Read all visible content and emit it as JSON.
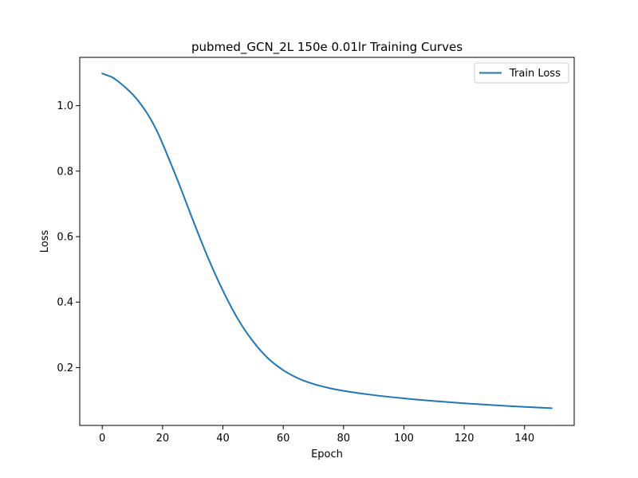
{
  "chart_data": {
    "type": "line",
    "title": "pubmed_GCN_2L  150e  0.01lr  Training Curves",
    "xlabel": "Epoch",
    "ylabel": "Loss",
    "xlim": [
      -7.45,
      156.45
    ],
    "ylim": [
      0.0234,
      1.1475
    ],
    "xticks": [
      0,
      20,
      40,
      60,
      80,
      100,
      120,
      140
    ],
    "yticks": [
      0.2,
      0.4,
      0.6,
      0.8,
      1.0
    ],
    "xtick_labels": [
      "0",
      "20",
      "40",
      "60",
      "80",
      "100",
      "120",
      "140"
    ],
    "ytick_labels": [
      "0.2",
      "0.4",
      "0.6",
      "0.8",
      "1.0"
    ],
    "grid": false,
    "legend_position": "top-right",
    "series": [
      {
        "name": "Train Loss",
        "color": "#1f77b4",
        "x": [
          0,
          3,
          5,
          8,
          10,
          12,
          15,
          18,
          20,
          25,
          30,
          35,
          40,
          45,
          50,
          55,
          60,
          65,
          70,
          75,
          80,
          90,
          100,
          110,
          120,
          130,
          140,
          149
        ],
        "y": [
          1.098,
          1.088,
          1.076,
          1.053,
          1.035,
          1.014,
          0.975,
          0.925,
          0.884,
          0.772,
          0.652,
          0.537,
          0.435,
          0.348,
          0.28,
          0.228,
          0.192,
          0.167,
          0.15,
          0.138,
          0.129,
          0.116,
          0.106,
          0.098,
          0.091,
          0.085,
          0.08,
          0.076
        ]
      }
    ]
  }
}
